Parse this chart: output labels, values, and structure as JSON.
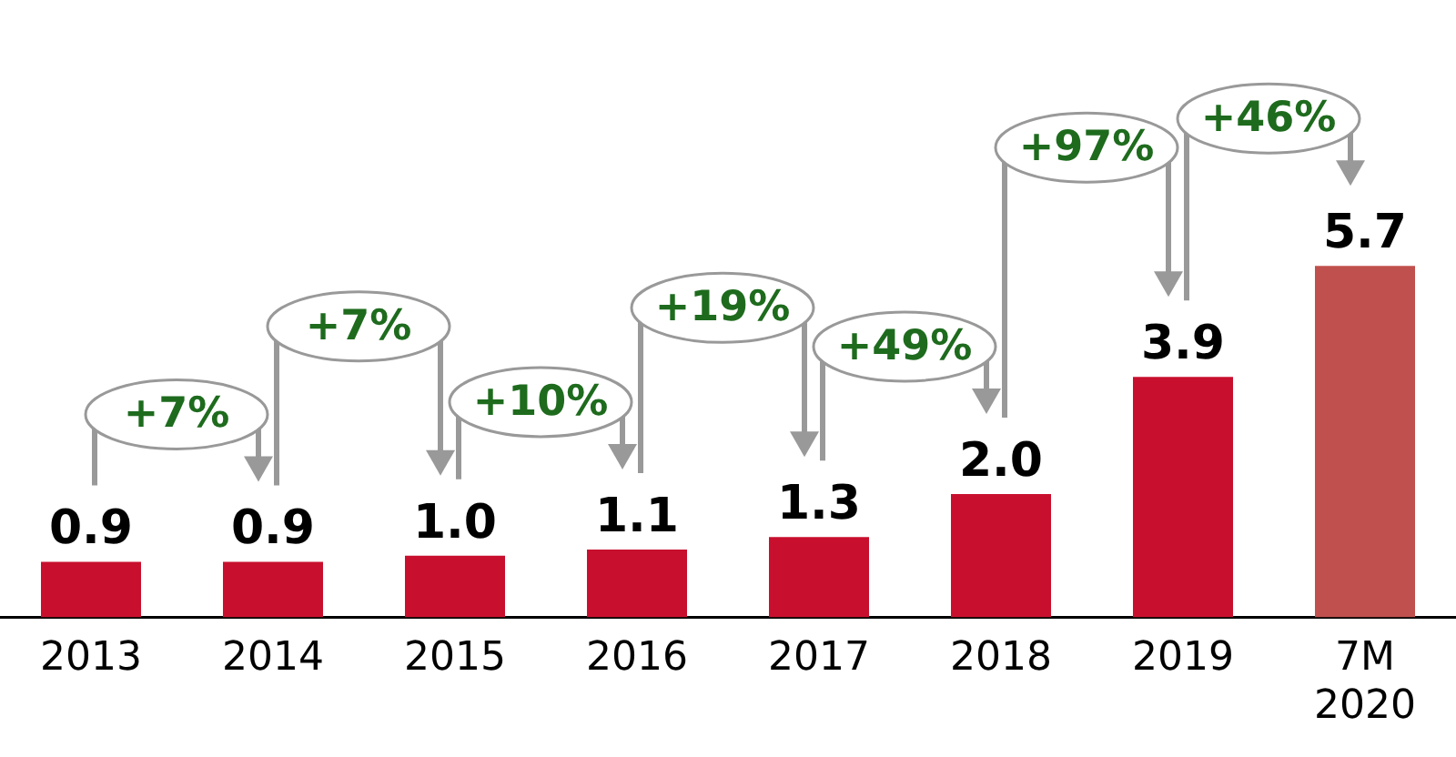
{
  "chart_data": {
    "type": "bar",
    "categories": [
      "2013",
      "2014",
      "2015",
      "2016",
      "2017",
      "2018",
      "2019",
      "7M 2020"
    ],
    "values": [
      0.9,
      0.9,
      1.0,
      1.1,
      1.3,
      2.0,
      3.9,
      5.7
    ],
    "colors": [
      "#c8102e",
      "#c8102e",
      "#c8102e",
      "#c8102e",
      "#c8102e",
      "#c8102e",
      "#c8102e",
      "#c0504d"
    ],
    "value_labels": [
      "0.9",
      "0.9",
      "1.0",
      "1.1",
      "1.3",
      "2.0",
      "3.9",
      "5.7"
    ],
    "annotations": [
      "+7%",
      "+7%",
      "+10%",
      "+19%",
      "+49%",
      "+97%",
      "+46%"
    ],
    "grid": false,
    "legend": false
  }
}
